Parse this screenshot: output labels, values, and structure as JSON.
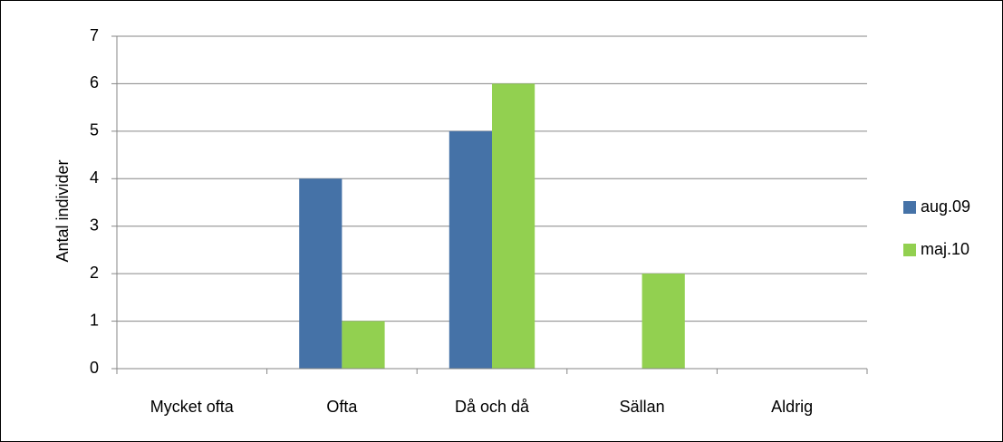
{
  "chart_data": {
    "type": "bar",
    "y_label": "Antal individer",
    "categories": [
      "Mycket ofta",
      "Ofta",
      "Då och då",
      "Sällan",
      "Aldrig"
    ],
    "series": [
      {
        "name": "aug.09",
        "color": "#4572a7",
        "values": [
          0,
          4,
          5,
          0,
          0
        ]
      },
      {
        "name": "maj.10",
        "color": "#92d050",
        "values": [
          0,
          1,
          6,
          2,
          0
        ]
      }
    ],
    "ylim": [
      0,
      7
    ],
    "yticks": [
      0,
      1,
      2,
      3,
      4,
      5,
      6,
      7
    ],
    "grid": true,
    "legend": "right"
  }
}
